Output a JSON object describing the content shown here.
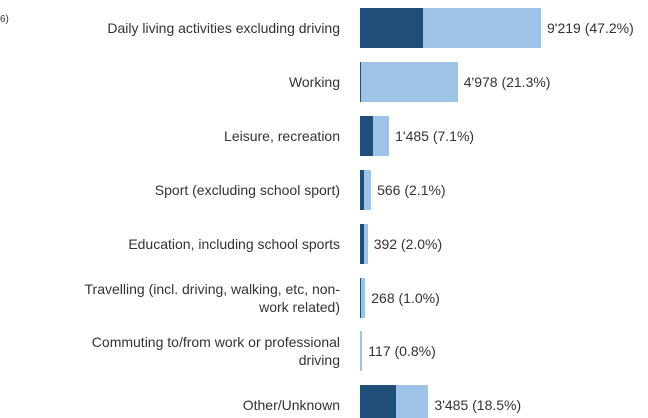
{
  "chart_data": {
    "type": "stacked-bar-horizontal",
    "annotation": "6)",
    "categories": [
      "Daily living activities excluding driving",
      "Working",
      "Leisure, recreation",
      "Sport (excluding school sport)",
      "Education, including school sports",
      "Travelling (incl. driving, walking, etc, non-\nwork related)",
      "Commuting to/from work or professional\ndriving",
      "Other/Unknown"
    ],
    "series": [
      {
        "color": "#1f4e79",
        "values": [
          3210,
          50,
          660,
          200,
          200,
          50,
          20,
          1830
        ]
      },
      {
        "color": "#9dc3e6",
        "values": [
          6009,
          4928,
          825,
          366,
          192,
          218,
          97,
          1655
        ]
      }
    ],
    "totals": [
      9219,
      4978,
      1485,
      566,
      392,
      268,
      117,
      3485
    ],
    "total_labels": [
      "9'219 (47.2%)",
      "4'978 (21.3%)",
      "1'485 (7.1%)",
      "566 (2.1%)",
      "392 (2.0%)",
      "268 (1.0%)",
      "117 (0.8%)",
      "3'485 (18.5%)"
    ]
  }
}
